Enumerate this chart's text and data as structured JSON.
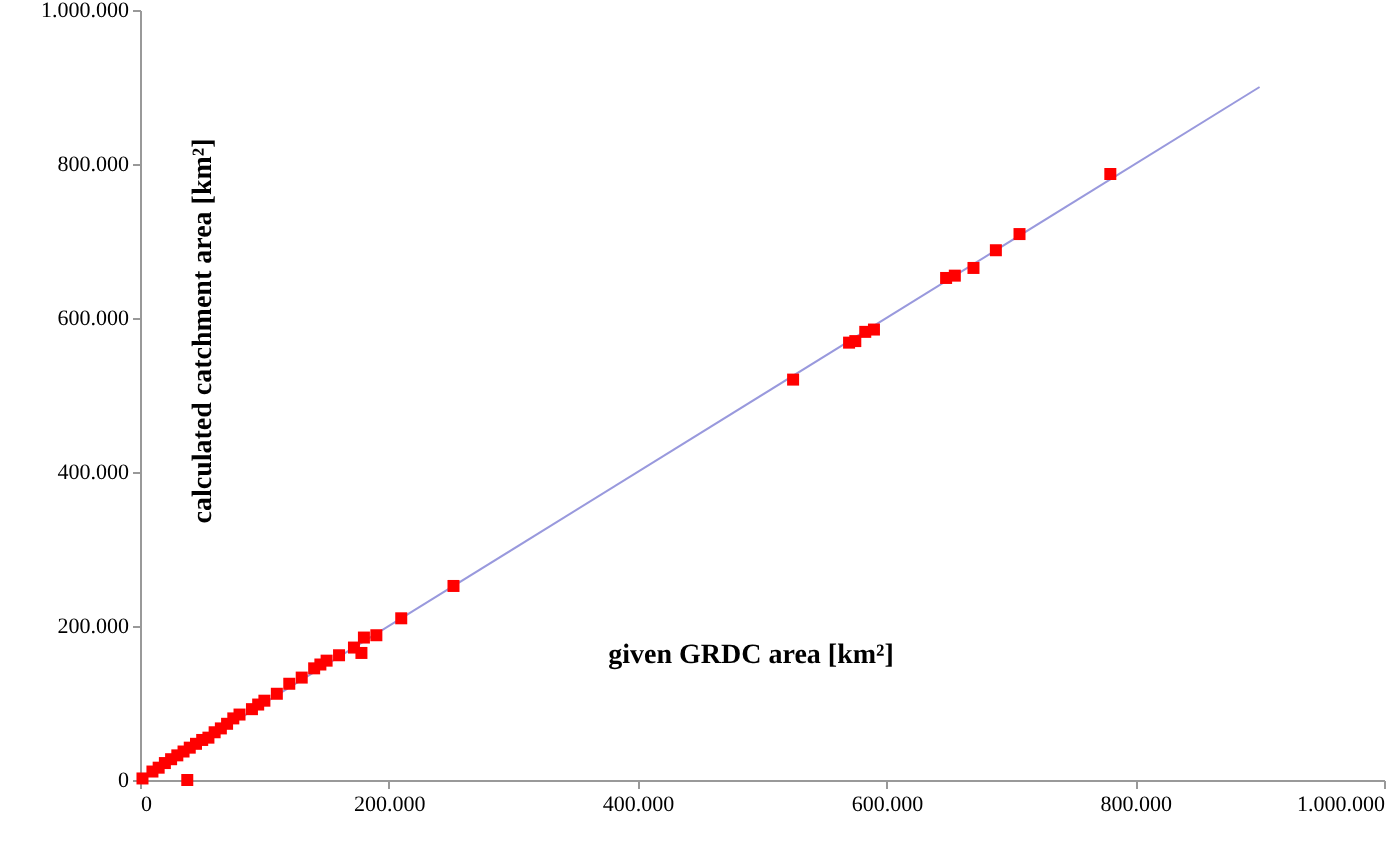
{
  "chart_data": {
    "type": "scatter",
    "xlabel": "given GRDC area [km²]",
    "ylabel": "calculated catchment area [km²]",
    "xlim": [
      0,
      1000000
    ],
    "ylim": [
      0,
      1000000
    ],
    "xticks": [
      0,
      {
        "value": 200000,
        "label": "200.000"
      },
      {
        "value": 400000,
        "label": "400.000"
      },
      {
        "value": 600000,
        "label": "600.000"
      },
      {
        "value": 800000,
        "label": "800.000"
      },
      {
        "value": 1000000,
        "label": "1.000.000"
      }
    ],
    "yticks": [
      0,
      {
        "value": 200000,
        "label": "200.000"
      },
      {
        "value": 400000,
        "label": "400.000"
      },
      {
        "value": 600000,
        "label": "600.000"
      },
      {
        "value": 800000,
        "label": "800.000"
      },
      {
        "value": 1000000,
        "label": "1.000.000"
      }
    ],
    "grid": false,
    "marker": "square",
    "series": [
      {
        "color": "#ff0000",
        "x": [
          780000,
          707000,
          688000,
          670000,
          655000,
          648000,
          590000,
          583000,
          575000,
          570000,
          525000,
          252000,
          210000,
          190000,
          180000,
          178000,
          172000,
          160000,
          150000,
          145000,
          140000,
          130000,
          120000,
          110000,
          100000,
          95000,
          90000,
          80000,
          75000,
          70000,
          65000,
          60000,
          55000,
          50000,
          45000,
          40000,
          35000,
          30000,
          25000,
          20000,
          15000,
          10000,
          2000,
          38000
        ],
        "values": [
          787000,
          709000,
          688000,
          665000,
          655000,
          652000,
          585000,
          582000,
          570000,
          568000,
          520000,
          252000,
          210000,
          188000,
          185000,
          165000,
          172000,
          162000,
          155000,
          150000,
          145000,
          133000,
          125000,
          112000,
          103000,
          98000,
          92000,
          85000,
          80000,
          73000,
          67000,
          62000,
          55000,
          52000,
          47000,
          42000,
          37000,
          32000,
          27000,
          22000,
          16000,
          11000,
          2000,
          0
        ]
      },
      {
        "type": "line",
        "color": "#9999dd",
        "line_style": "solid",
        "marker": "none",
        "x": [
          0,
          900000
        ],
        "values": [
          0,
          900000
        ]
      }
    ]
  }
}
